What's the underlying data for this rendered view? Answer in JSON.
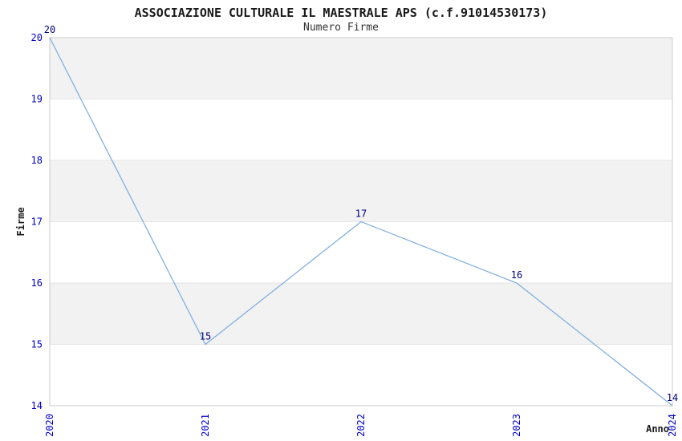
{
  "chart_data": {
    "type": "line",
    "title": "ASSOCIAZIONE CULTURALE IL MAESTRALE APS (c.f.91014530173)",
    "subtitle": "Numero Firme",
    "xlabel": "Anno",
    "ylabel": "Firme",
    "x": [
      "2020",
      "2021",
      "2022",
      "2023",
      "2024"
    ],
    "series": [
      {
        "name": "Numero Firme",
        "values": [
          20,
          15,
          17,
          16,
          14
        ]
      }
    ],
    "point_labels": [
      "20",
      "15",
      "17",
      "16",
      "14"
    ],
    "ylim": [
      14,
      20
    ],
    "yticks": [
      14,
      15,
      16,
      17,
      18,
      19,
      20
    ],
    "grid": true,
    "band_rows": "alternating gray bands at 15-16, 17-18, 19-20",
    "legend_position": "none",
    "colors": {
      "line": "#7aabde",
      "band": "#f2f2f2",
      "gridline": "#e6e6e6",
      "frame": "#cccccc",
      "tick_label": "#0000cd",
      "point_label": "#000080",
      "axis_label": "#1a1a1a",
      "title": "#1a1a1a",
      "subtitle": "#333333",
      "background": "#ffffff"
    }
  }
}
